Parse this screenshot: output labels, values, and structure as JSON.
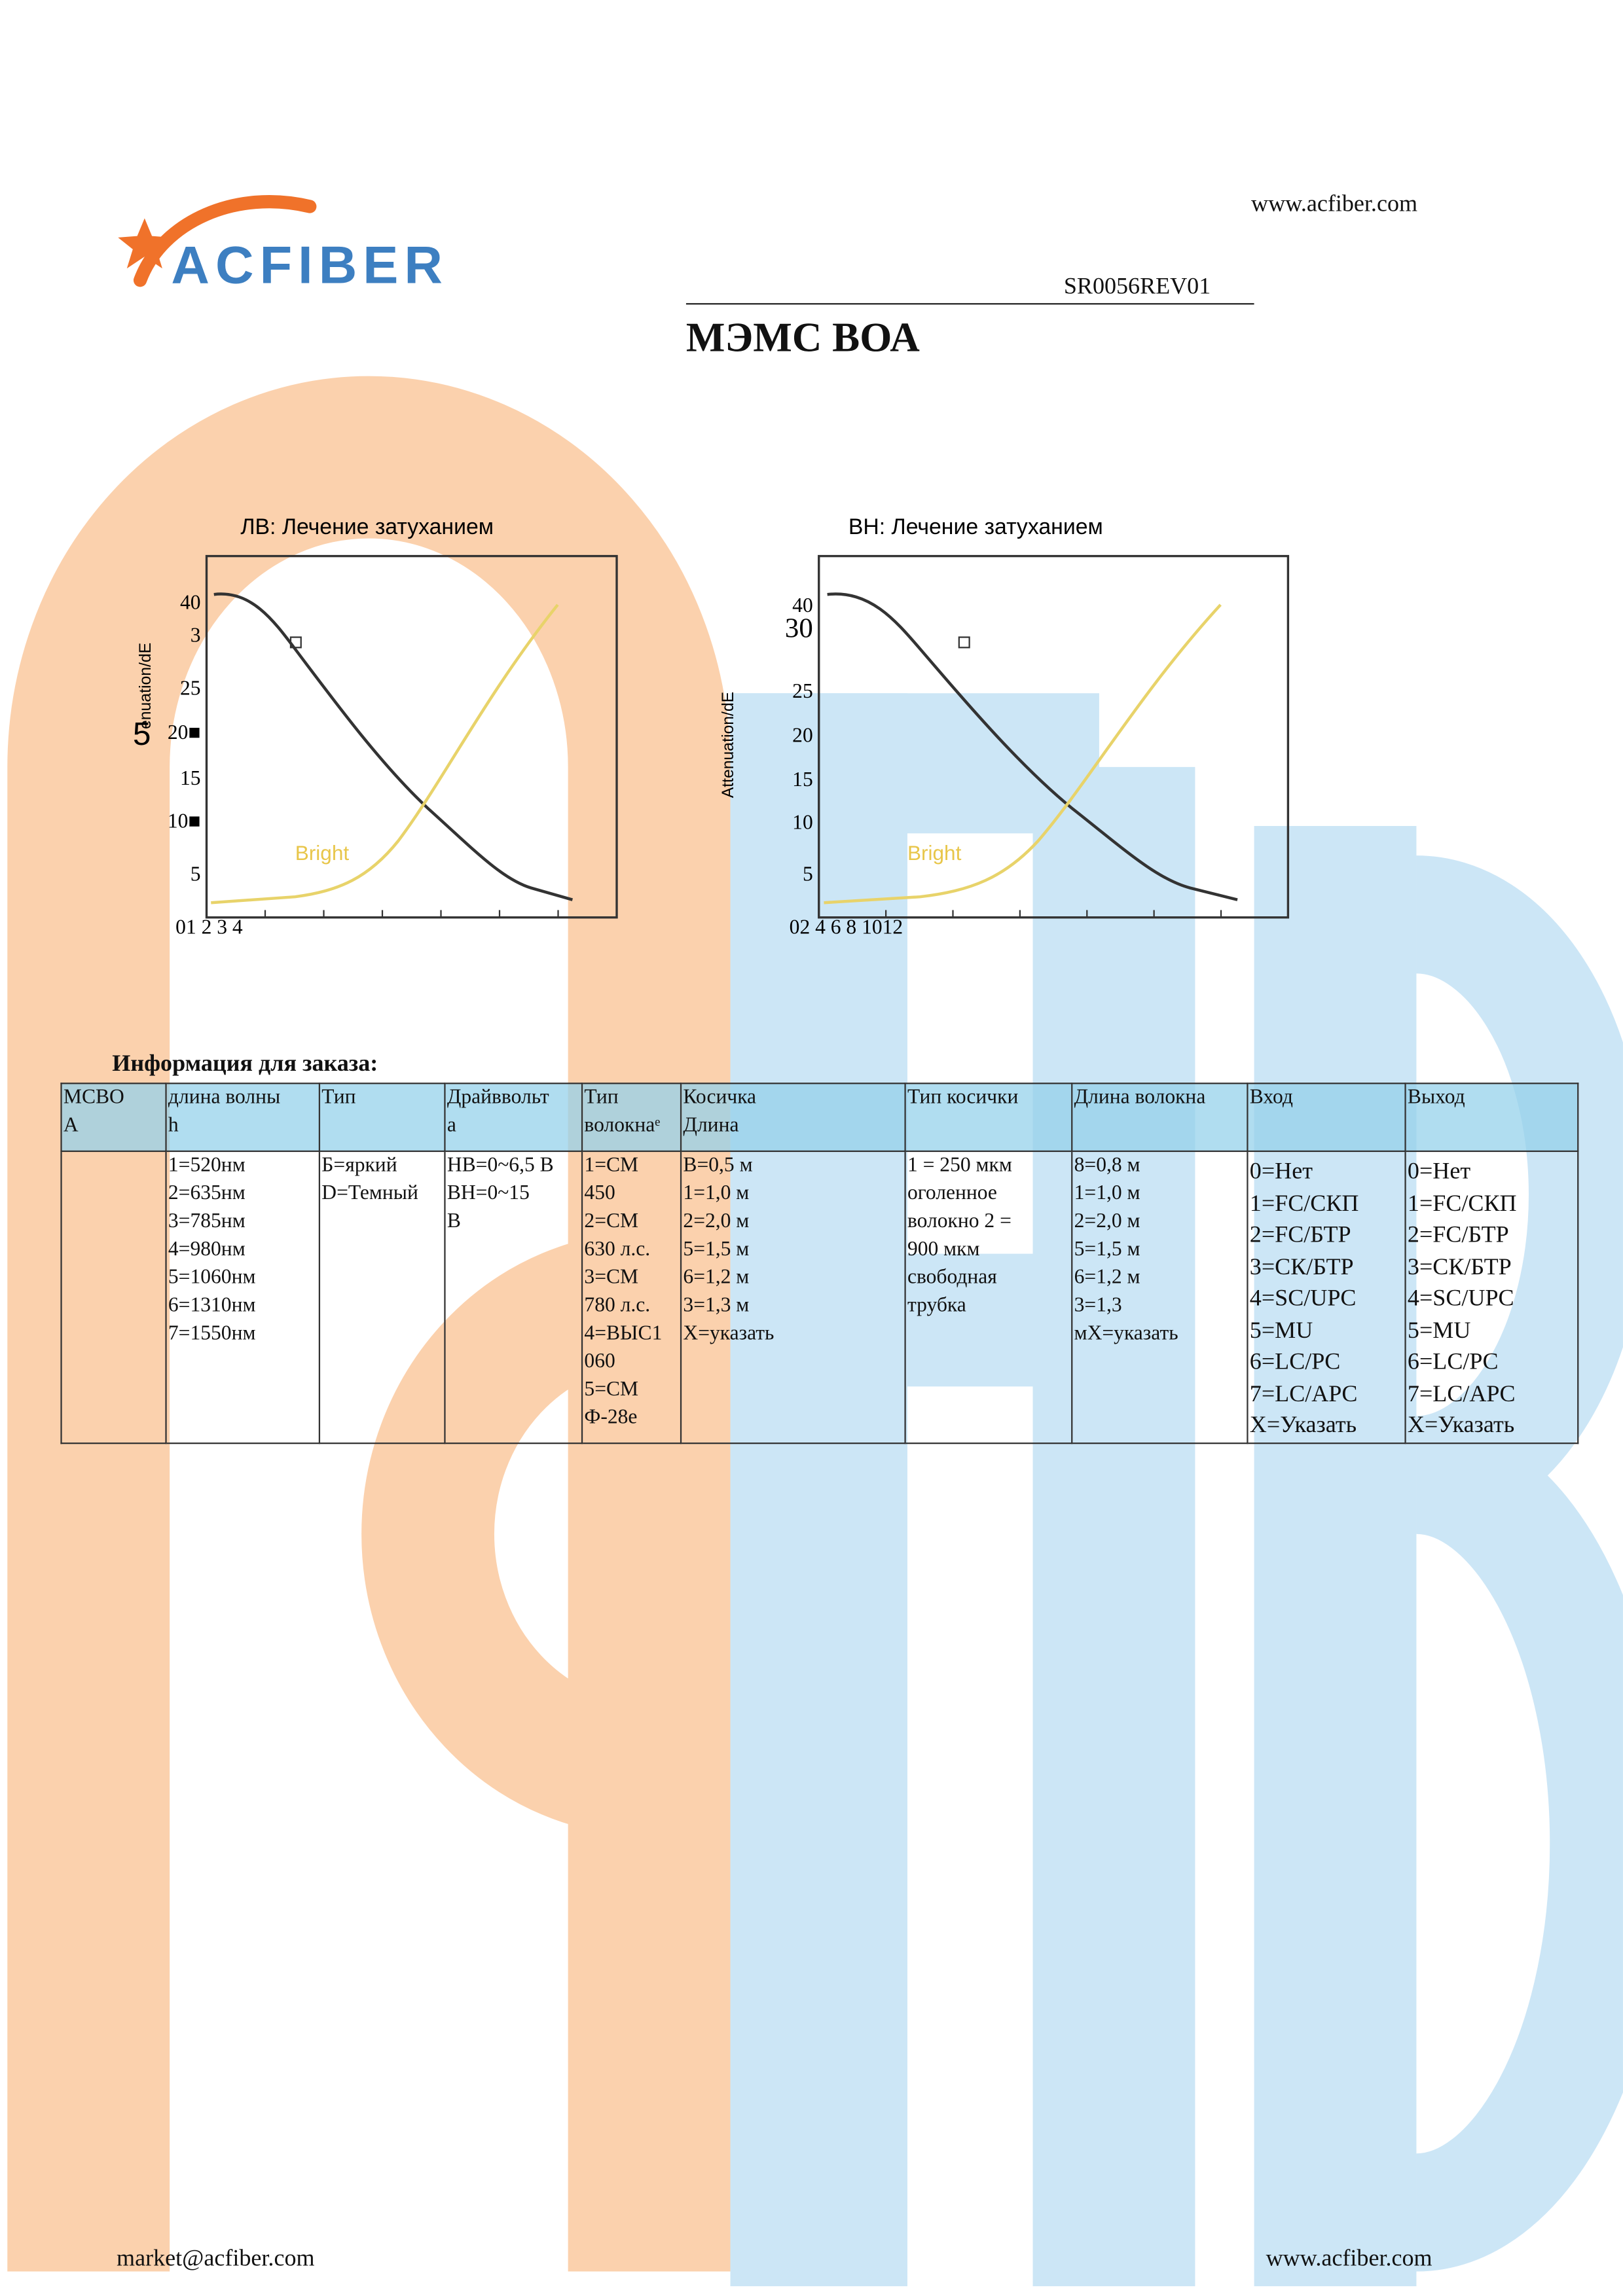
{
  "header": {
    "logo": "ACFIBER",
    "website": "www.acfiber.com",
    "doc_number": "SR0056REV01",
    "title": "МЭМС ВОА"
  },
  "figures": [
    {
      "title": "ЛВ: Лечение затуханием",
      "y_axis_title": "enuation/dE",
      "y_axis_mark": "5",
      "y_labels": [
        "40",
        "3",
        "25",
        "20■",
        "15",
        "10■",
        "5"
      ],
      "x_labels": "01 2 3 4",
      "curve_label": "Bright"
    },
    {
      "title": "ВН: Лечение затуханием",
      "y_axis_title": "Attenuation/dE",
      "y_labels": [
        "40",
        "30",
        "25",
        "20",
        "15",
        "10",
        "5"
      ],
      "x_labels": "02 4 6 8 1012",
      "curve_label": "Bright"
    }
  ],
  "ordering_title": "Информация для заказа:",
  "table": {
    "header": [
      [
        "МСВО",
        "А"
      ],
      [
        "длина волны",
        "h"
      ],
      [
        "Тип"
      ],
      [
        "Драйввольт",
        "а"
      ],
      [
        "Тип",
        "волокнаᵉ"
      ],
      [
        "Косичка",
        "Длина"
      ],
      [
        "Тип косички"
      ],
      [
        "Длина волокна"
      ],
      [
        "Вход"
      ],
      [
        "Выход"
      ]
    ],
    "rows": [
      [
        [],
        [
          "1=520нм",
          "2=635нм",
          "3=785нм",
          "4=980нм",
          "5=1060нм",
          "6=1310нм",
          "7=1550нм"
        ],
        [
          "Б=яркий",
          "D=Темный"
        ],
        [
          "НВ=0~6,5 В",
          "ВН=0~15",
          "В"
        ],
        [
          "1=СМ",
          "450",
          "2=СМ",
          "630 л.с.",
          "3=СМ",
          "780 л.с.",
          "4=ВЫС1",
          "060",
          "5=СМ",
          "Ф-28е"
        ],
        [
          "B=0,5 м",
          "1=1,0 м",
          "2=2,0 м",
          "5=1,5 м",
          "6=1,2 м",
          "3=1,3 м",
          "X=указать"
        ],
        [
          "1 = 250 мкм",
          "оголенное",
          "волокно 2 =",
          "900 мкм",
          "свободная",
          "трубка"
        ],
        [
          "8=0,8 м",
          "1=1,0 м",
          "2=2,0 м",
          "5=1,5 м",
          "6=1,2 м",
          "3=1,3",
          "мX=указать"
        ],
        [
          "0=Нет",
          "1=FC/СКП",
          "2=FC/БТР",
          "3=СК/БТР",
          "4=SC/UPC",
          "5=MU",
          "6=LC/PC",
          "7=LC/APC",
          "X=Указать"
        ],
        [
          "0=Нет",
          "1=FC/СКП",
          "2=FC/БТР",
          "3=СК/БТР",
          "4=SC/UPC",
          "5=MU",
          "6=LC/PC",
          "7=LC/APC",
          "X=Указать"
        ]
      ]
    ]
  },
  "footer": {
    "email": "market@acfiber.com",
    "website": "www.acfiber.com"
  }
}
